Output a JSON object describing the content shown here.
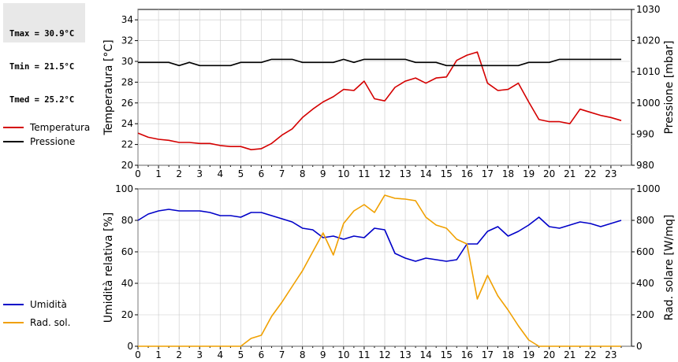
{
  "stats": [
    {
      "label": "Tmax",
      "value": "30.9°C"
    },
    {
      "label": "Tmin",
      "value": "21.5°C"
    },
    {
      "label": "Tmed",
      "value": "25.2°C"
    }
  ],
  "chart_data": [
    {
      "type": "line",
      "xlim": [
        0,
        24
      ],
      "x_ticks": [
        0,
        1,
        2,
        3,
        4,
        5,
        6,
        7,
        8,
        9,
        10,
        11,
        12,
        13,
        14,
        15,
        16,
        17,
        18,
        19,
        20,
        21,
        22,
        23
      ],
      "y_left": {
        "label": "Temperatura [°C]",
        "ylim": [
          20,
          35
        ],
        "ticks": [
          20,
          22,
          24,
          26,
          28,
          30,
          32,
          34
        ]
      },
      "y_right": {
        "label": "Pressione [mbar]",
        "ylim": [
          980,
          1030
        ],
        "ticks": [
          980,
          990,
          1000,
          1010,
          1020,
          1030
        ]
      },
      "grid": true,
      "series": [
        {
          "name": "Temperatura",
          "axis": "left",
          "color": "#d40000",
          "x": [
            0,
            0.5,
            1,
            1.5,
            2,
            2.5,
            3,
            3.5,
            4,
            4.5,
            5,
            5.5,
            6,
            6.5,
            7,
            7.5,
            8,
            8.5,
            9,
            9.5,
            10,
            10.5,
            11,
            11.5,
            12,
            12.5,
            13,
            13.5,
            14,
            14.5,
            15,
            15.5,
            16,
            16.5,
            17,
            17.5,
            18,
            18.5,
            19,
            19.5,
            20,
            20.5,
            21,
            21.5,
            22,
            22.5,
            23,
            23.5
          ],
          "y": [
            23.1,
            22.7,
            22.5,
            22.4,
            22.2,
            22.2,
            22.1,
            22.1,
            21.9,
            21.8,
            21.8,
            21.5,
            21.6,
            22.1,
            22.9,
            23.5,
            24.6,
            25.4,
            26.1,
            26.6,
            27.3,
            27.2,
            28.1,
            26.4,
            26.2,
            27.5,
            28.1,
            28.4,
            27.9,
            28.4,
            28.5,
            30.1,
            30.6,
            30.9,
            27.9,
            27.2,
            27.3,
            27.9,
            26.1,
            24.4,
            24.2,
            24.2,
            24.0,
            25.4,
            25.1,
            24.8,
            24.6,
            24.3
          ]
        },
        {
          "name": "Pressione",
          "axis": "right",
          "color": "#000000",
          "x": [
            0,
            0.5,
            1,
            1.5,
            2,
            2.5,
            3,
            3.5,
            4,
            4.5,
            5,
            5.5,
            6,
            6.5,
            7,
            7.5,
            8,
            8.5,
            9,
            9.5,
            10,
            10.5,
            11,
            11.5,
            12,
            12.5,
            13,
            13.5,
            14,
            14.5,
            15,
            15.5,
            16,
            16.5,
            17,
            17.5,
            18,
            18.5,
            19,
            19.5,
            20,
            20.5,
            21,
            21.5,
            22,
            22.5,
            23,
            23.5
          ],
          "y": [
            1013,
            1013,
            1013,
            1013,
            1012,
            1013,
            1012,
            1012,
            1012,
            1012,
            1013,
            1013,
            1013,
            1014,
            1014,
            1014,
            1013,
            1013,
            1013,
            1013,
            1014,
            1013,
            1014,
            1014,
            1014,
            1014,
            1014,
            1013,
            1013,
            1013,
            1012,
            1012,
            1012,
            1012,
            1012,
            1012,
            1012,
            1012,
            1013,
            1013,
            1013,
            1014,
            1014,
            1014,
            1014,
            1014,
            1014,
            1014
          ]
        }
      ]
    },
    {
      "type": "line",
      "xlim": [
        0,
        24
      ],
      "x_ticks": [
        0,
        1,
        2,
        3,
        4,
        5,
        6,
        7,
        8,
        9,
        10,
        11,
        12,
        13,
        14,
        15,
        16,
        17,
        18,
        19,
        20,
        21,
        22,
        23
      ],
      "y_left": {
        "label": "Umidità relativa [%]",
        "ylim": [
          0,
          100
        ],
        "ticks": [
          0,
          20,
          40,
          60,
          80,
          100
        ]
      },
      "y_right": {
        "label": "Rad. solare [W/mq]",
        "ylim": [
          0,
          1000
        ],
        "ticks": [
          0,
          200,
          400,
          600,
          800,
          1000
        ]
      },
      "grid": true,
      "series": [
        {
          "name": "Umidità",
          "axis": "left",
          "color": "#0000c8",
          "x": [
            0,
            0.5,
            1,
            1.5,
            2,
            2.5,
            3,
            3.5,
            4,
            4.5,
            5,
            5.5,
            6,
            6.5,
            7,
            7.5,
            8,
            8.5,
            9,
            9.5,
            10,
            10.5,
            11,
            11.5,
            12,
            12.5,
            13,
            13.5,
            14,
            14.5,
            15,
            15.5,
            16,
            16.5,
            17,
            17.5,
            18,
            18.5,
            19,
            19.5,
            20,
            20.5,
            21,
            21.5,
            22,
            22.5,
            23,
            23.5
          ],
          "y": [
            80,
            84,
            86,
            87,
            86,
            86,
            86,
            85,
            83,
            83,
            82,
            85,
            85,
            83,
            81,
            79,
            75,
            74,
            69,
            70,
            68,
            70,
            69,
            75,
            74,
            59,
            56,
            54,
            56,
            55,
            54,
            55,
            65,
            65,
            73,
            76,
            70,
            73,
            77,
            82,
            76,
            75,
            77,
            79,
            78,
            76,
            78,
            80
          ]
        },
        {
          "name": "Rad. sol.",
          "axis": "right",
          "color": "#f0a000",
          "x": [
            0,
            0.5,
            1,
            1.5,
            2,
            2.5,
            3,
            3.5,
            4,
            4.5,
            5,
            5.5,
            6,
            6.5,
            7,
            7.5,
            8,
            8.5,
            9,
            9.5,
            10,
            10.5,
            11,
            11.5,
            12,
            12.5,
            13,
            13.5,
            14,
            14.5,
            15,
            15.5,
            16,
            16.5,
            17,
            17.5,
            18,
            18.5,
            19,
            19.5,
            20,
            20.5,
            21,
            21.5,
            22,
            22.5,
            23,
            23.5
          ],
          "y": [
            0,
            0,
            0,
            0,
            0,
            0,
            0,
            0,
            0,
            0,
            0,
            50,
            70,
            190,
            280,
            380,
            480,
            600,
            720,
            580,
            780,
            860,
            900,
            850,
            960,
            940,
            935,
            925,
            820,
            770,
            750,
            680,
            650,
            300,
            450,
            320,
            230,
            130,
            40,
            0,
            0,
            0,
            0,
            0,
            0,
            0,
            0,
            0
          ]
        }
      ]
    }
  ]
}
